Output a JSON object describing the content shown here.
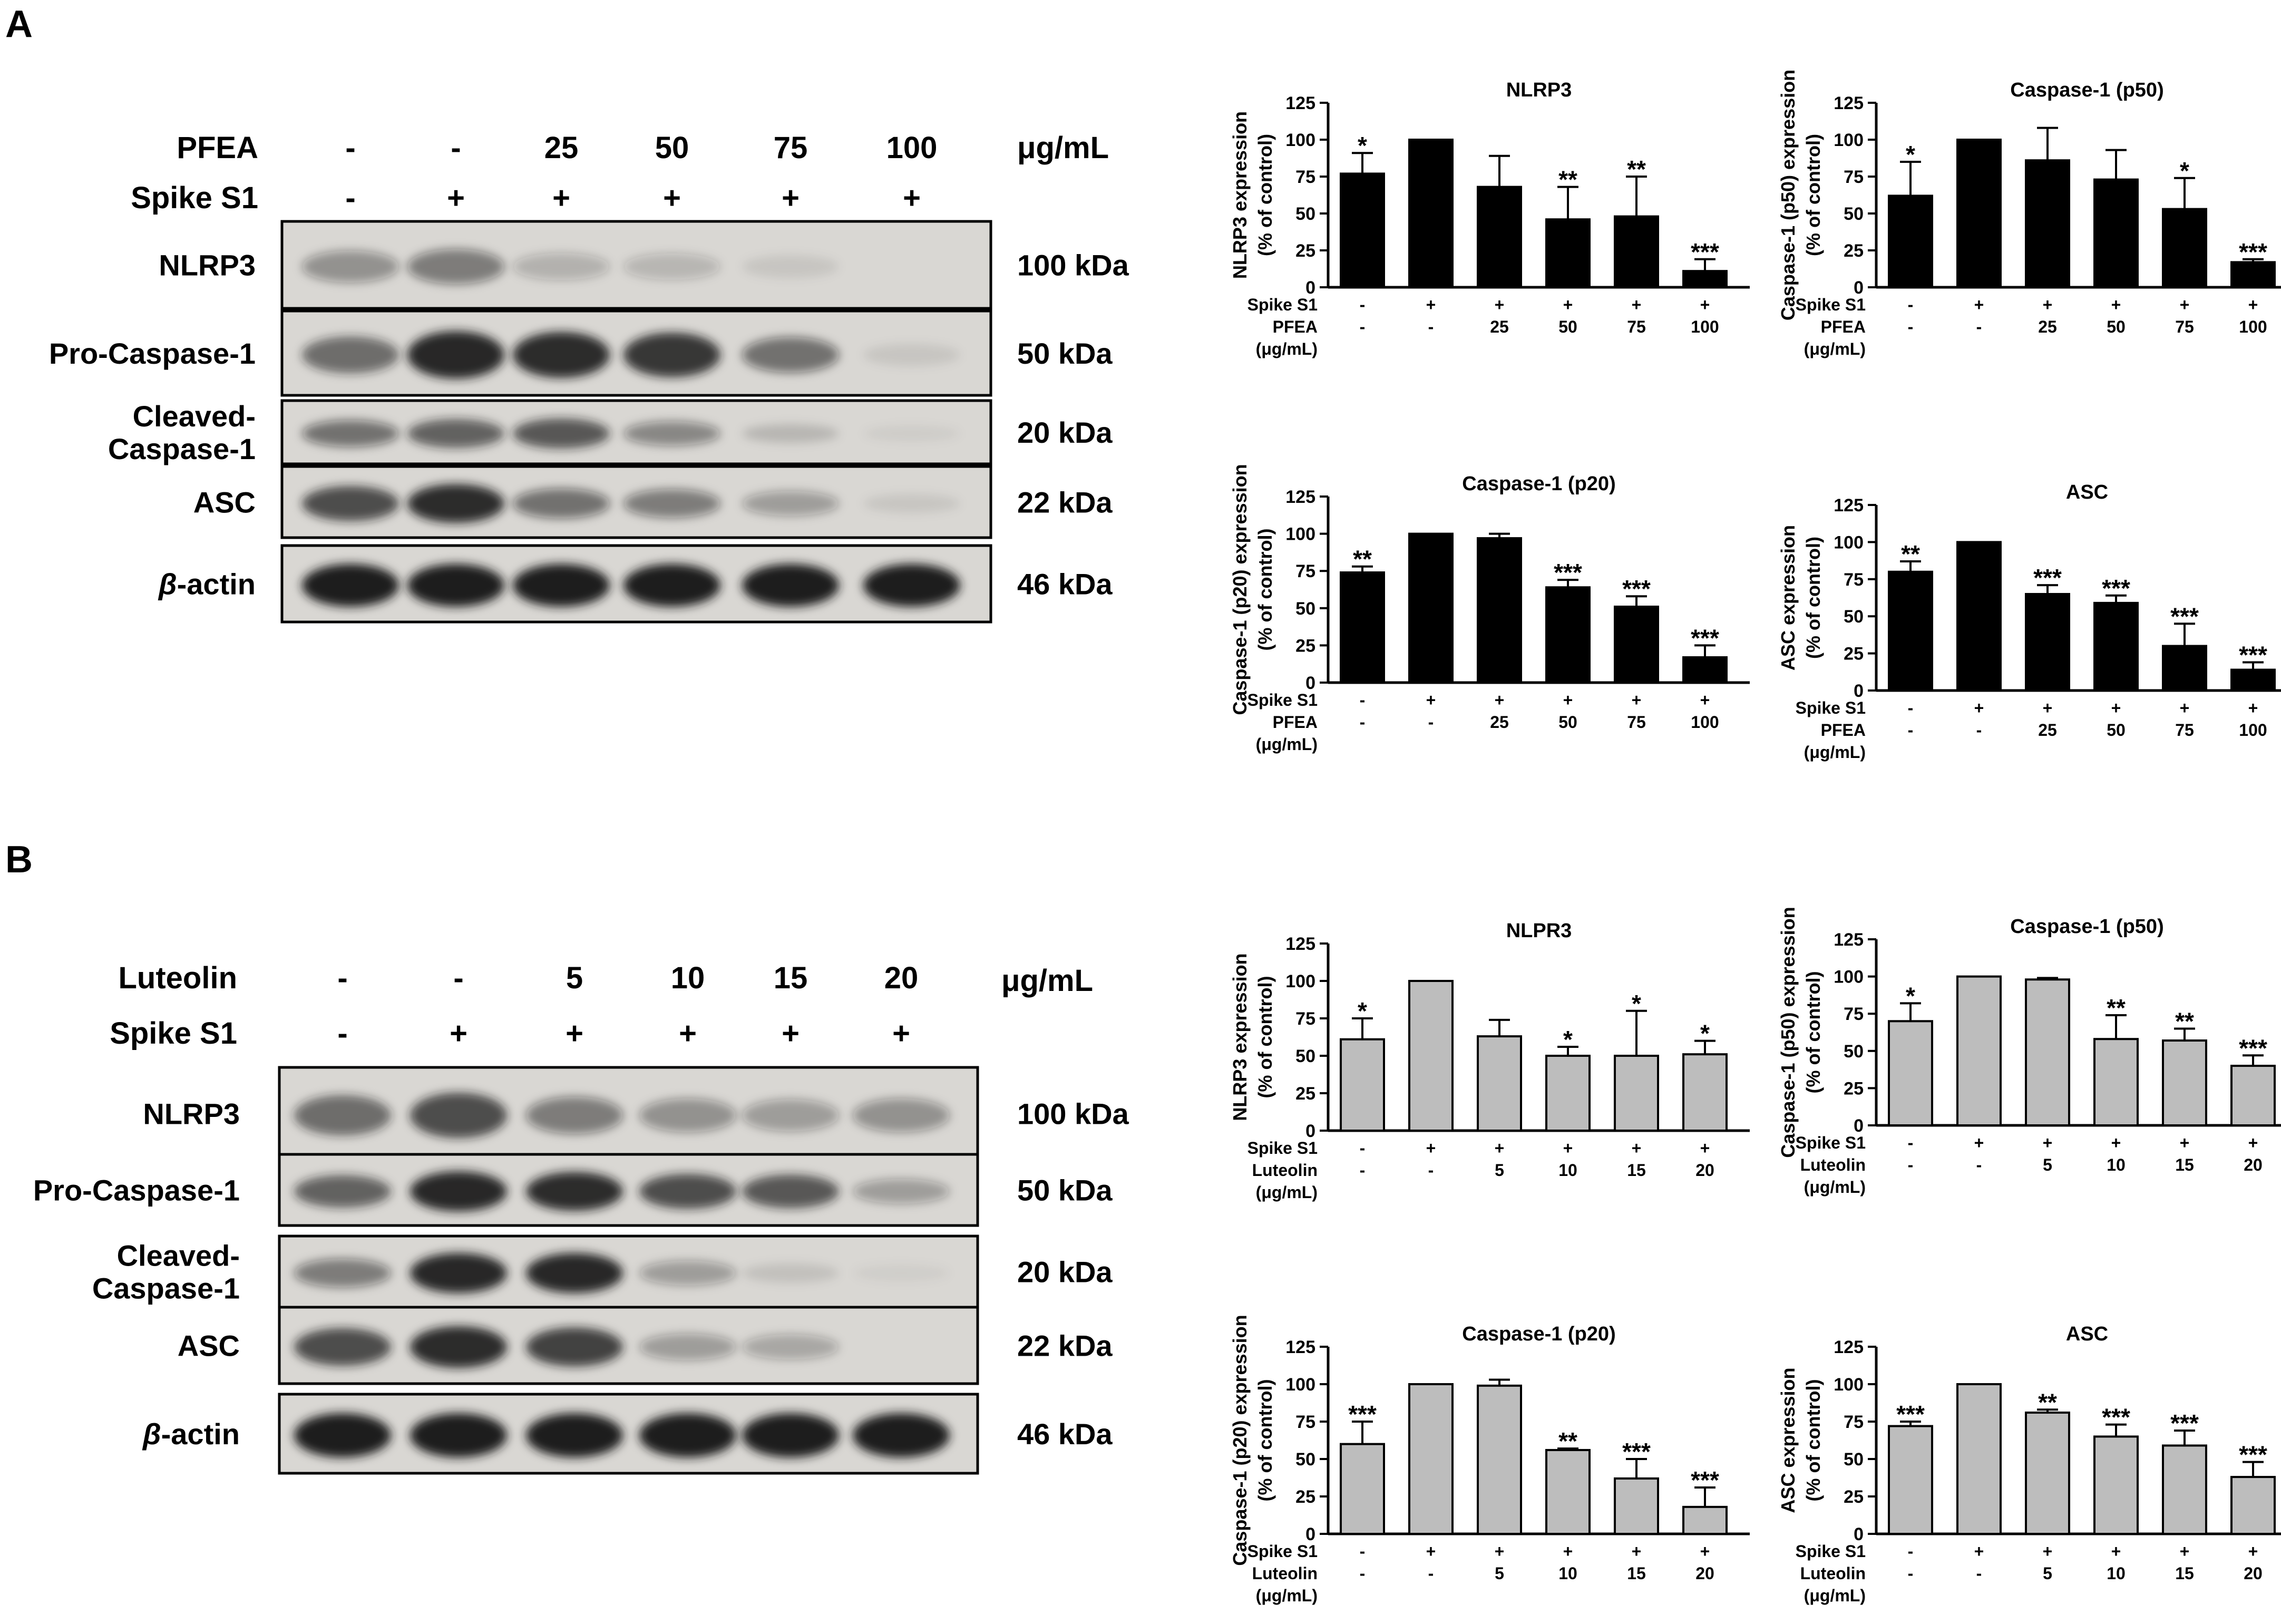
{
  "panel_a": {
    "label": "A",
    "blot": {
      "treat_rows": [
        {
          "name": "PFEA",
          "values": [
            "-",
            "-",
            "25",
            "50",
            "75",
            "100"
          ],
          "unit": "μg/mL"
        },
        {
          "name": "Spike S1",
          "values": [
            "-",
            "+",
            "+",
            "+",
            "+",
            "+"
          ]
        }
      ],
      "bands": [
        {
          "name": "NLRP3",
          "mw": "100 kDa",
          "intensity": [
            0.35,
            0.45,
            0.2,
            0.18,
            0.08,
            0.02
          ]
        },
        {
          "name": "Pro-Caspase-1",
          "mw": "50 kDa",
          "intensity": [
            0.55,
            0.9,
            0.85,
            0.8,
            0.5,
            0.08
          ]
        },
        {
          "name": "Cleaved-Caspase-1",
          "mw": "20 kDa",
          "intensity": [
            0.5,
            0.6,
            0.65,
            0.4,
            0.15,
            0.05
          ]
        },
        {
          "name": "ASC",
          "mw": "22 kDa",
          "intensity": [
            0.7,
            0.85,
            0.5,
            0.45,
            0.3,
            0.08
          ]
        },
        {
          "name": "β-actin",
          "mw": "46 kDa",
          "intensity": [
            0.95,
            0.95,
            0.95,
            0.95,
            0.95,
            0.95
          ]
        }
      ]
    }
  },
  "panel_b": {
    "label": "B",
    "blot": {
      "treat_rows": [
        {
          "name": "Luteolin",
          "values": [
            "-",
            "-",
            "5",
            "10",
            "15",
            "20"
          ],
          "unit": "μg/mL"
        },
        {
          "name": "Spike S1",
          "values": [
            "-",
            "+",
            "+",
            "+",
            "+",
            "+"
          ]
        }
      ],
      "bands": [
        {
          "name": "NLRP3",
          "mw": "100 kDa",
          "intensity": [
            0.55,
            0.7,
            0.45,
            0.35,
            0.3,
            0.35
          ]
        },
        {
          "name": "Pro-Caspase-1",
          "mw": "50 kDa",
          "intensity": [
            0.6,
            0.9,
            0.85,
            0.7,
            0.65,
            0.3
          ]
        },
        {
          "name": "Cleaved-Caspase-1",
          "mw": "20 kDa",
          "intensity": [
            0.45,
            0.9,
            0.9,
            0.3,
            0.1,
            0.04
          ]
        },
        {
          "name": "ASC",
          "mw": "22 kDa",
          "intensity": [
            0.7,
            0.85,
            0.75,
            0.3,
            0.25,
            0.02
          ]
        },
        {
          "name": "β-actin",
          "mw": "46 kDa",
          "intensity": [
            0.95,
            0.95,
            0.95,
            0.95,
            0.95,
            0.95
          ]
        }
      ]
    }
  },
  "colors": {
    "black_bar": "#000000",
    "gray_bar": "#bdbdbd",
    "blot_bg": "#d9d7d3",
    "band": "#1a1a1a"
  },
  "chart_data": [
    {
      "type": "bar",
      "panel": "A",
      "title": "NLRP3",
      "ylabel_lines": [
        "NLRP3 expression",
        "(% of control)"
      ],
      "ylim": [
        0,
        125
      ],
      "yticks": [
        "0",
        "25",
        "50",
        "75",
        "100",
        "125"
      ],
      "xrows": [
        {
          "label": "Spike S1",
          "values": [
            "-",
            "+",
            "+",
            "+",
            "+",
            "+"
          ]
        },
        {
          "label": "PFEA",
          "values": [
            "-",
            "-",
            "25",
            "50",
            "75",
            "100"
          ]
        },
        {
          "label": "(μg/mL)",
          "values": []
        }
      ],
      "values": [
        77,
        100,
        68,
        46,
        48,
        11
      ],
      "errors": [
        14,
        0,
        21,
        22,
        27,
        8
      ],
      "significance": [
        "*",
        "",
        "",
        "**",
        "**",
        "***"
      ],
      "fill": "black_bar"
    },
    {
      "type": "bar",
      "panel": "A",
      "title": "Caspase-1 (p50)",
      "ylabel_lines": [
        "Caspase-1 (p50) expression",
        "(% of control)"
      ],
      "ylim": [
        0,
        125
      ],
      "yticks": [
        "0",
        "25",
        "50",
        "75",
        "100",
        "125"
      ],
      "xrows": [
        {
          "label": "Spike S1",
          "values": [
            "-",
            "+",
            "+",
            "+",
            "+",
            "+"
          ]
        },
        {
          "label": "PFEA",
          "values": [
            "-",
            "-",
            "25",
            "50",
            "75",
            "100"
          ]
        },
        {
          "label": "(μg/mL)",
          "values": []
        }
      ],
      "values": [
        62,
        100,
        86,
        73,
        53,
        17
      ],
      "errors": [
        23,
        0,
        22,
        20,
        21,
        2
      ],
      "significance": [
        "*",
        "",
        "",
        "",
        "*",
        "***"
      ],
      "fill": "black_bar"
    },
    {
      "type": "bar",
      "panel": "A",
      "title": "Caspase-1 (p20)",
      "ylabel_lines": [
        "Caspase-1 (p20) expression",
        "(% of control)"
      ],
      "ylim": [
        0,
        125
      ],
      "yticks": [
        "0",
        "25",
        "50",
        "75",
        "100",
        "125"
      ],
      "xrows": [
        {
          "label": "Spike S1",
          "values": [
            "-",
            "+",
            "+",
            "+",
            "+",
            "+"
          ]
        },
        {
          "label": "PFEA",
          "values": [
            "-",
            "-",
            "25",
            "50",
            "75",
            "100"
          ]
        },
        {
          "label": "(μg/mL)",
          "values": []
        }
      ],
      "values": [
        74,
        100,
        97,
        64,
        51,
        17
      ],
      "errors": [
        4,
        0,
        3,
        5,
        7,
        8
      ],
      "significance": [
        "**",
        "",
        "",
        "***",
        "***",
        "***"
      ],
      "fill": "black_bar"
    },
    {
      "type": "bar",
      "panel": "A",
      "title": "ASC",
      "ylabel_lines": [
        "ASC expression",
        "(% of control)"
      ],
      "ylim": [
        0,
        125
      ],
      "yticks": [
        "0",
        "25",
        "50",
        "75",
        "100",
        "125"
      ],
      "xrows": [
        {
          "label": "Spike S1",
          "values": [
            "-",
            "+",
            "+",
            "+",
            "+",
            "+"
          ]
        },
        {
          "label": "PFEA",
          "values": [
            "-",
            "-",
            "25",
            "50",
            "75",
            "100"
          ]
        },
        {
          "label": "(μg/mL)",
          "values": []
        }
      ],
      "values": [
        80,
        100,
        65,
        59,
        30,
        14
      ],
      "errors": [
        7,
        0,
        6,
        5,
        15,
        5
      ],
      "significance": [
        "**",
        "",
        "***",
        "***",
        "***",
        "***"
      ],
      "fill": "black_bar"
    },
    {
      "type": "bar",
      "panel": "B",
      "title": "NLPR3",
      "ylabel_lines": [
        "NLRP3 expression",
        "(% of control)"
      ],
      "ylim": [
        0,
        125
      ],
      "yticks": [
        "0",
        "25",
        "50",
        "75",
        "100",
        "125"
      ],
      "xrows": [
        {
          "label": "Spike S1",
          "values": [
            "-",
            "+",
            "+",
            "+",
            "+",
            "+"
          ]
        },
        {
          "label": "Luteolin",
          "values": [
            "-",
            "-",
            "5",
            "10",
            "15",
            "20"
          ]
        },
        {
          "label": "(μg/mL)",
          "values": []
        }
      ],
      "values": [
        61,
        100,
        63,
        50,
        50,
        51
      ],
      "errors": [
        14,
        0,
        11,
        6,
        30,
        9
      ],
      "significance": [
        "*",
        "",
        "",
        "*",
        "*",
        "*"
      ],
      "fill": "gray_bar"
    },
    {
      "type": "bar",
      "panel": "B",
      "title": "Caspase-1 (p50)",
      "ylabel_lines": [
        "Caspase-1 (p50) expression",
        "(% of control)"
      ],
      "ylim": [
        0,
        125
      ],
      "yticks": [
        "0",
        "25",
        "50",
        "75",
        "100",
        "125"
      ],
      "xrows": [
        {
          "label": "Spike S1",
          "values": [
            "-",
            "+",
            "+",
            "+",
            "+",
            "+"
          ]
        },
        {
          "label": "Luteolin",
          "values": [
            "-",
            "-",
            "5",
            "10",
            "15",
            "20"
          ]
        },
        {
          "label": "(μg/mL)",
          "values": []
        }
      ],
      "values": [
        70,
        100,
        98,
        58,
        57,
        40
      ],
      "errors": [
        12,
        0,
        1,
        16,
        8,
        7
      ],
      "significance": [
        "*",
        "",
        "",
        "**",
        "**",
        "***"
      ],
      "fill": "gray_bar"
    },
    {
      "type": "bar",
      "panel": "B",
      "title": "Caspase-1 (p20)",
      "ylabel_lines": [
        "Caspase-1 (p20) expression",
        "(% of control)"
      ],
      "ylim": [
        0,
        125
      ],
      "yticks": [
        "0",
        "25",
        "50",
        "75",
        "100",
        "125"
      ],
      "xrows": [
        {
          "label": "Spike S1",
          "values": [
            "-",
            "+",
            "+",
            "+",
            "+",
            "+"
          ]
        },
        {
          "label": "Luteolin",
          "values": [
            "-",
            "-",
            "5",
            "10",
            "15",
            "20"
          ]
        },
        {
          "label": "(μg/mL)",
          "values": []
        }
      ],
      "values": [
        60,
        100,
        99,
        56,
        37,
        18
      ],
      "errors": [
        15,
        0,
        4,
        1,
        13,
        13
      ],
      "significance": [
        "***",
        "",
        "",
        "**",
        "***",
        "***"
      ],
      "fill": "gray_bar"
    },
    {
      "type": "bar",
      "panel": "B",
      "title": "ASC",
      "ylabel_lines": [
        "ASC expression",
        "(% of control)"
      ],
      "ylim": [
        0,
        125
      ],
      "yticks": [
        "0",
        "25",
        "50",
        "75",
        "100",
        "125"
      ],
      "xrows": [
        {
          "label": "Spike S1",
          "values": [
            "-",
            "+",
            "+",
            "+",
            "+",
            "+"
          ]
        },
        {
          "label": "Luteolin",
          "values": [
            "-",
            "-",
            "5",
            "10",
            "15",
            "20"
          ]
        },
        {
          "label": "(μg/mL)",
          "values": []
        }
      ],
      "values": [
        72,
        100,
        81,
        65,
        59,
        38
      ],
      "errors": [
        3,
        0,
        2,
        8,
        10,
        10
      ],
      "significance": [
        "***",
        "",
        "**",
        "***",
        "***",
        "***"
      ],
      "fill": "gray_bar"
    }
  ]
}
